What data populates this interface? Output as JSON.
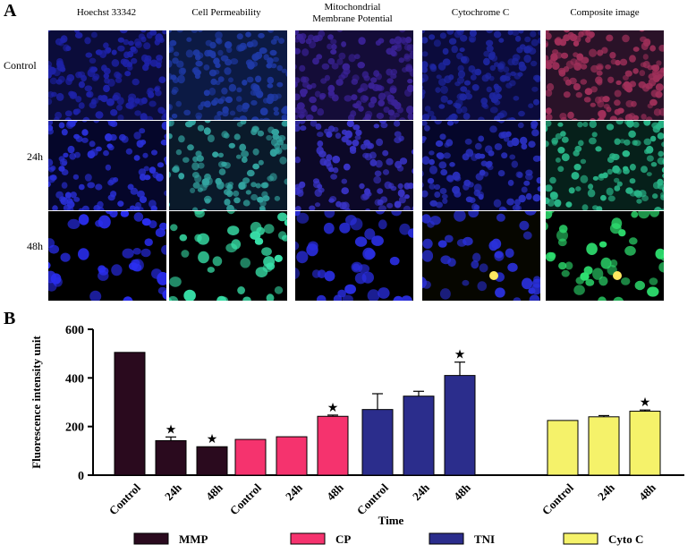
{
  "panel_a": {
    "letter": "A",
    "columns": [
      "Hoechst 33342",
      "Cell Permeability",
      "Mitochondrial Membrane Potential",
      "Cytochrome C",
      "Composite image"
    ],
    "column_lines": [
      [
        "Hoechst 33342"
      ],
      [
        "Cell Permeability"
      ],
      [
        "Mitochondrial",
        "Membrane Potential"
      ],
      [
        "Cytochrome C"
      ],
      [
        "Composite image"
      ]
    ],
    "rows": [
      "Control",
      "24h",
      "48h"
    ]
  },
  "panel_b": {
    "letter": "B"
  },
  "chart_data": {
    "type": "bar",
    "ylabel": "Fluorescence intensity unit",
    "xlabel": "Time",
    "ylim": [
      0,
      600
    ],
    "yticks": [
      0,
      200,
      400,
      600
    ],
    "categories": [
      "Control",
      "24h",
      "48h"
    ],
    "significance_marker": "★",
    "series": [
      {
        "name": "MMP",
        "color": "#2a0a1e",
        "values": [
          505,
          142,
          117
        ],
        "errors": [
          0,
          15,
          0
        ],
        "significant": [
          false,
          true,
          true
        ]
      },
      {
        "name": "CP",
        "color": "#f5336e",
        "values": [
          147,
          158,
          242
        ],
        "errors": [
          0,
          0,
          5
        ],
        "significant": [
          false,
          false,
          true
        ]
      },
      {
        "name": "TNI",
        "color": "#2b2d8c",
        "values": [
          270,
          325,
          410
        ],
        "errors": [
          65,
          20,
          55
        ],
        "significant": [
          false,
          false,
          true
        ]
      },
      {
        "name": "Cyto C",
        "color": "#f5f26a",
        "values": [
          225,
          240,
          263
        ],
        "errors": [
          0,
          5,
          5
        ],
        "significant": [
          false,
          false,
          true
        ]
      }
    ]
  }
}
